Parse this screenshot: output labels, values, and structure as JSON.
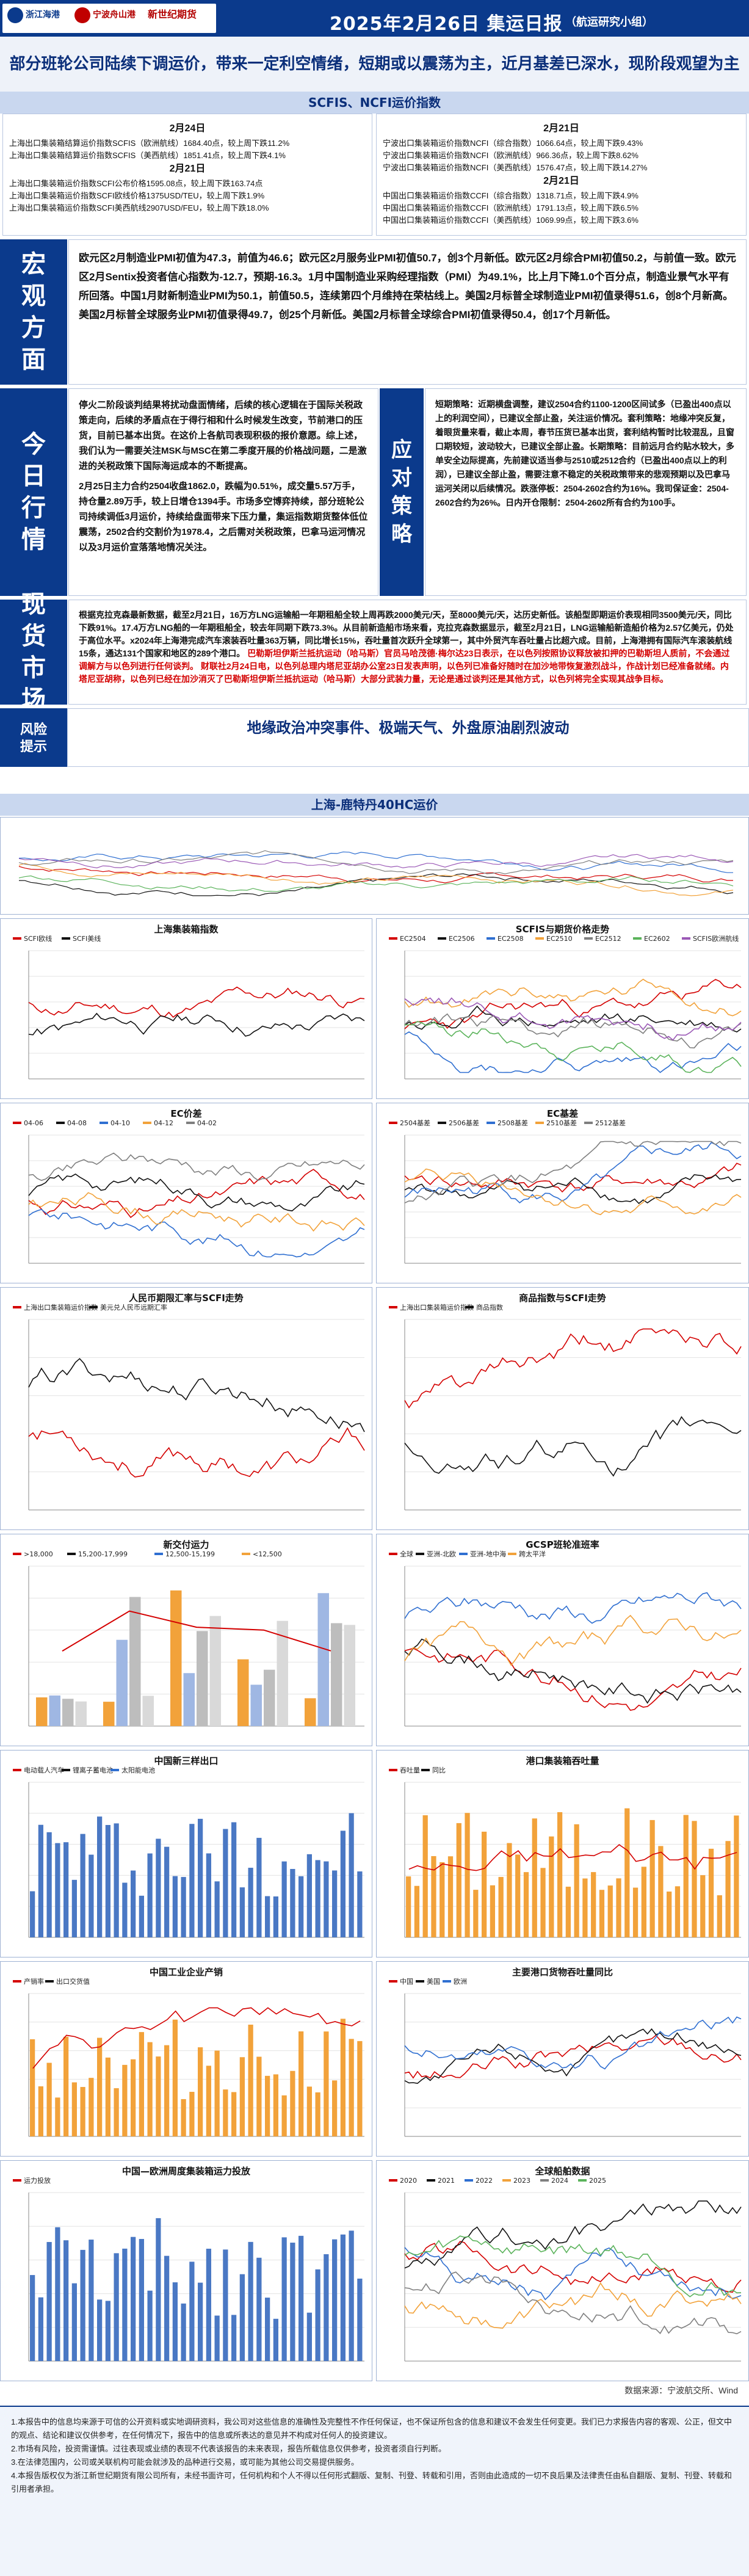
{
  "header": {
    "logo_left": "浙江海港",
    "logo_mid": "宁波舟山港",
    "logo_right": "新世纪期货",
    "title": "2025年2月26日 集运日报",
    "subtitle": "（航运研究小组）",
    "colors": {
      "primary": "#0b3a8c",
      "accent_red": "#d40000"
    }
  },
  "headline": "部分班轮公司陆续下调运价，带来一定利空情绪，短期或以震荡为主，近月基差已深水，现阶段观望为主",
  "index_band": "SCFIS、NCFI运价指数",
  "left_panel": {
    "date1": "2月24日",
    "lines1": [
      "上海出口集装箱结算运价指数SCFIS（欧洲航线）1684.40点，较上周下跌11.2%",
      "上海出口集装箱结算运价指数SCFIS（美西航线）1851.41点，较上周下跌4.1%"
    ],
    "date2": "2月21日",
    "lines2": [
      "上海出口集装箱运价指数SCFI公布价格1595.08点，较上周下跌163.74点",
      "上海出口集装箱运价指数SCFI欧线价格1375USD/TEU，较上周下跌1.9%",
      "上海出口集装箱运价指数SCFI美西航线2907USD/FEU，较上周下跌18.0%"
    ]
  },
  "right_panel": {
    "date1": "2月21日",
    "lines1": [
      "宁波出口集装箱运价指数NCFI（综合指数）1066.64点，较上周下跌9.43%",
      "宁波出口集装箱运价指数NCFI（欧洲航线）966.36点，较上周下跌8.62%",
      "宁波出口集装箱运价指数NCFI（美西航线）1576.47点，较上周下跌14.27%"
    ],
    "date2": "2月21日",
    "lines2": [
      "中国出口集装箱运价指数CCFI（综合指数）1318.71点，较上周下跌4.9%",
      "中国出口集装箱运价指数CCFI（欧洲航线）1791.13点，较上周下跌6.5%",
      "中国出口集装箱运价指数CCFI（美西航线）1069.99点，较上周下跌3.6%"
    ]
  },
  "macro": {
    "label": "宏观方面",
    "text": "欧元区2月制造业PMI初值为47.3，前值为46.6；欧元区2月服务业PMI初值50.7，创3个月新低。欧元区2月综合PMI初值50.2，与前值一致。欧元区2月Sentix投资者信心指数为-12.7，预期-16.3。1月中国制造业采购经理指数（PMI）为49.1%，比上月下降1.0个百分点，制造业景气水平有所回落。中国1月财新制造业PMI为50.1，前值50.5，连续第四个月维持在荣枯线上。美国2月标普全球制造业PMI初值录得51.6，创8个月新高。美国2月标普全球服务业PMI初值录得49.7，创25个月新低。美国2月标普全球综合PMI初值录得50.4，创17个月新低。"
  },
  "today": {
    "label": "今日行情",
    "text1": "停火二阶段谈判结果将扰动盘面情绪，后续的核心逻辑在于国际关税政策走向，后续的矛盾点在于得行相和什么时候发生改变，节前港口的压货，目前已基本出货。在这价上各航司表现积极的报价意愿。综上述，我们认为一需要关注MSK与MSC在第二季度开展的价格战问题，二是激进的关税政策下国际海运成本的不断提高。",
    "text2": "2月25日主力合约2504收盘1862.0，跌幅为0.51%，成交量5.57万手，持仓量2.89万手，较上日增仓1394手。市场多空博弈持续，部分班轮公司持续调低3月运价，持续给盘面带来下压力量，集运指数期货整体低位震荡，2502合约交割价为1978.4，之后需对关税政策，巴拿马运河情况以及3月运价宣落落地情况关注。"
  },
  "strategy": {
    "label": "应对策略",
    "text": "短期策略：近期横盘调整，建议2504合约1100-1200区间试多（已盈出400点以上的利润空间），已建议全部止盈，关注运价情况。套利策略：地缘冲突反复，着眼货量来看，截止本周，春节压货已基本出货，套利结构暂时比较混乱，且窗口期较短，波动较大，已建议全部止盈。长期策略：目前远月合约贴水较大，多单安全边际提高，先前建议适当参与2510或2512合约（已盈出400点以上的利润），已建议全部止盈，需要注意不稳定的关税政策带来的悲观预期以及巴拿马运河关闭以后续情况。跌涨停板：2504-2602合约为16%。我司保证金：2504-2602合约为26%。日内开仓限制：2504-2602所有合约为100手。"
  },
  "spot": {
    "label": "现货市场",
    "text_black": "根据克拉克森最新数据，截至2月21日，16万方LNG运输船一年期租船全较上周再跌2000美元/天，至8000美元/天，达历史新低。该船型即期运价表现相同3500美元/天，同比下跌91%。17.4万方LNG船的一年期租船全，较去年同期下跌73.3%。从目前新造船市场来看，克拉克森数据显示，截至2月21日，LNG运输船新造船价格为2.57亿美元，仍处于高位水平。x2024年上海港完成汽车滚装吞吐量363万辆，同比增长15%，吞吐量首次跃升全球第一，其中外贸汽车吞吐量占比超六成。目前，上海港拥有国际汽车滚装航线15条，通达131个国家和地区的289个港口。",
    "text_red1": "巴勒斯坦伊斯兰抵抗运动（哈马斯）官员马哈茂德·梅尔达23日表示，在以色列按照协议释放被扣押的巴勒斯坦人质前，不会通过调解方与以色列进行任何谈判。",
    "text_red2": "财联社2月24日电，以色列总理内塔尼亚胡办公室23日发表声明，以色列已准备好随时在加沙地带恢复激烈战斗，作战计划已经准备就绪。内塔尼亚胡称，以色列已经在加沙消灭了巴勒斯坦伊斯兰抵抗运动（哈马斯）大部分武装力量，无论是通过谈判还是其他方式，以色列将完全实现其战争目标。"
  },
  "risk": {
    "label1": "风险",
    "label2": "提示",
    "text": "地缘政治冲突事件、极端天气、外盘原油剧烈波动"
  },
  "charts": {
    "top_band": "上海-鹿特丹40HC运价",
    "c1": {
      "title": "上海集装箱指数",
      "legend": [
        "SCFI欧线",
        "SCFI美线"
      ]
    },
    "c2": {
      "title": "SCFIS与期货价格走势",
      "legend": [
        "EC2504",
        "EC2506",
        "EC2508",
        "EC2510",
        "EC2512",
        "EC2602",
        "SCFIS欧洲航线"
      ]
    },
    "c3": {
      "title": "EC价差",
      "legend": [
        "04-06",
        "04-08",
        "04-10",
        "04-12",
        "04-02"
      ]
    },
    "c4": {
      "title": "EC基差",
      "legend": [
        "2504基差",
        "2506基差",
        "2508基差",
        "2510基差",
        "2512基差"
      ]
    },
    "c5": {
      "title": "人民币期限汇率与SCFI走势",
      "legend": [
        "上海出口集装箱运价指数",
        "美元兑人民币远期汇率"
      ]
    },
    "c6": {
      "title": "商品指数与SCFI走势",
      "legend": [
        "上海出口集装箱运价指数",
        "商品指数"
      ]
    },
    "c7": {
      "title": "新交付运力",
      "legend": [
        ">18,000",
        "15,200-17,999",
        "12,500-15,199",
        "<12,500"
      ]
    },
    "c8": {
      "title": "GCSP班轮准班率",
      "legend": [
        "全球",
        "亚洲-北欧",
        "亚洲-地中海",
        "跨太平洋"
      ]
    },
    "c9": {
      "title": "中国新三样出口",
      "legend": [
        "电动载人汽车",
        "锂离子蓄电池",
        "太阳能电池"
      ]
    },
    "c10": {
      "title": "港口集装箱吞吐量",
      "legend": [
        "吞吐量",
        "同比"
      ]
    },
    "c11": {
      "title": "中国工业企业产销",
      "legend": [
        "产销率",
        "出口交货值"
      ]
    },
    "c12": {
      "title": "主要港口货物吞吐量同比",
      "legend": [
        "中国",
        "美国",
        "欧洲"
      ]
    },
    "c13": {
      "title": "中国—欧洲周度集装箱运力投放",
      "legend": [
        "运力投放"
      ]
    },
    "c14": {
      "title": "全球船舶数据",
      "legend": [
        "2020",
        "2021",
        "2022",
        "2023",
        "2024",
        "2025"
      ]
    },
    "source": "数据来源：宁波航交所、Wind"
  },
  "disclaimer": {
    "lines": [
      "1.本报告中的信息均来源于可信的公开资料或实地调研资料，我公司对这些信息的准确性及完整性不作任何保证，也不保证所包含的信息和建议不会发生任何变更。我们已力求报告内容的客观、公正，但文中的观点、结论和建议仅供参考，在任何情况下，报告中的信息或所表达的意见并不构成对任何人的投资建议。",
      "2.市场有风险，投资需谨慎。过往表现或业绩的表现不代表该报告的未来表现，报告所载信息仅供参考，投资者须自行判断。",
      "3.在法律范围内，公司或关联机构可能会就涉及的品种进行交易，或可能为其他公司交易提供服务。",
      "4.本报告版权仅为浙江新世纪期货有限公司所有，未经书面许可，任何机构和个人不得以任何形式翻版、复制、刊登、转载和引用，否则由此造成的一切不良后果及法律责任由私自翻版、复制、刊登、转载和引用者承担。"
    ]
  }
}
